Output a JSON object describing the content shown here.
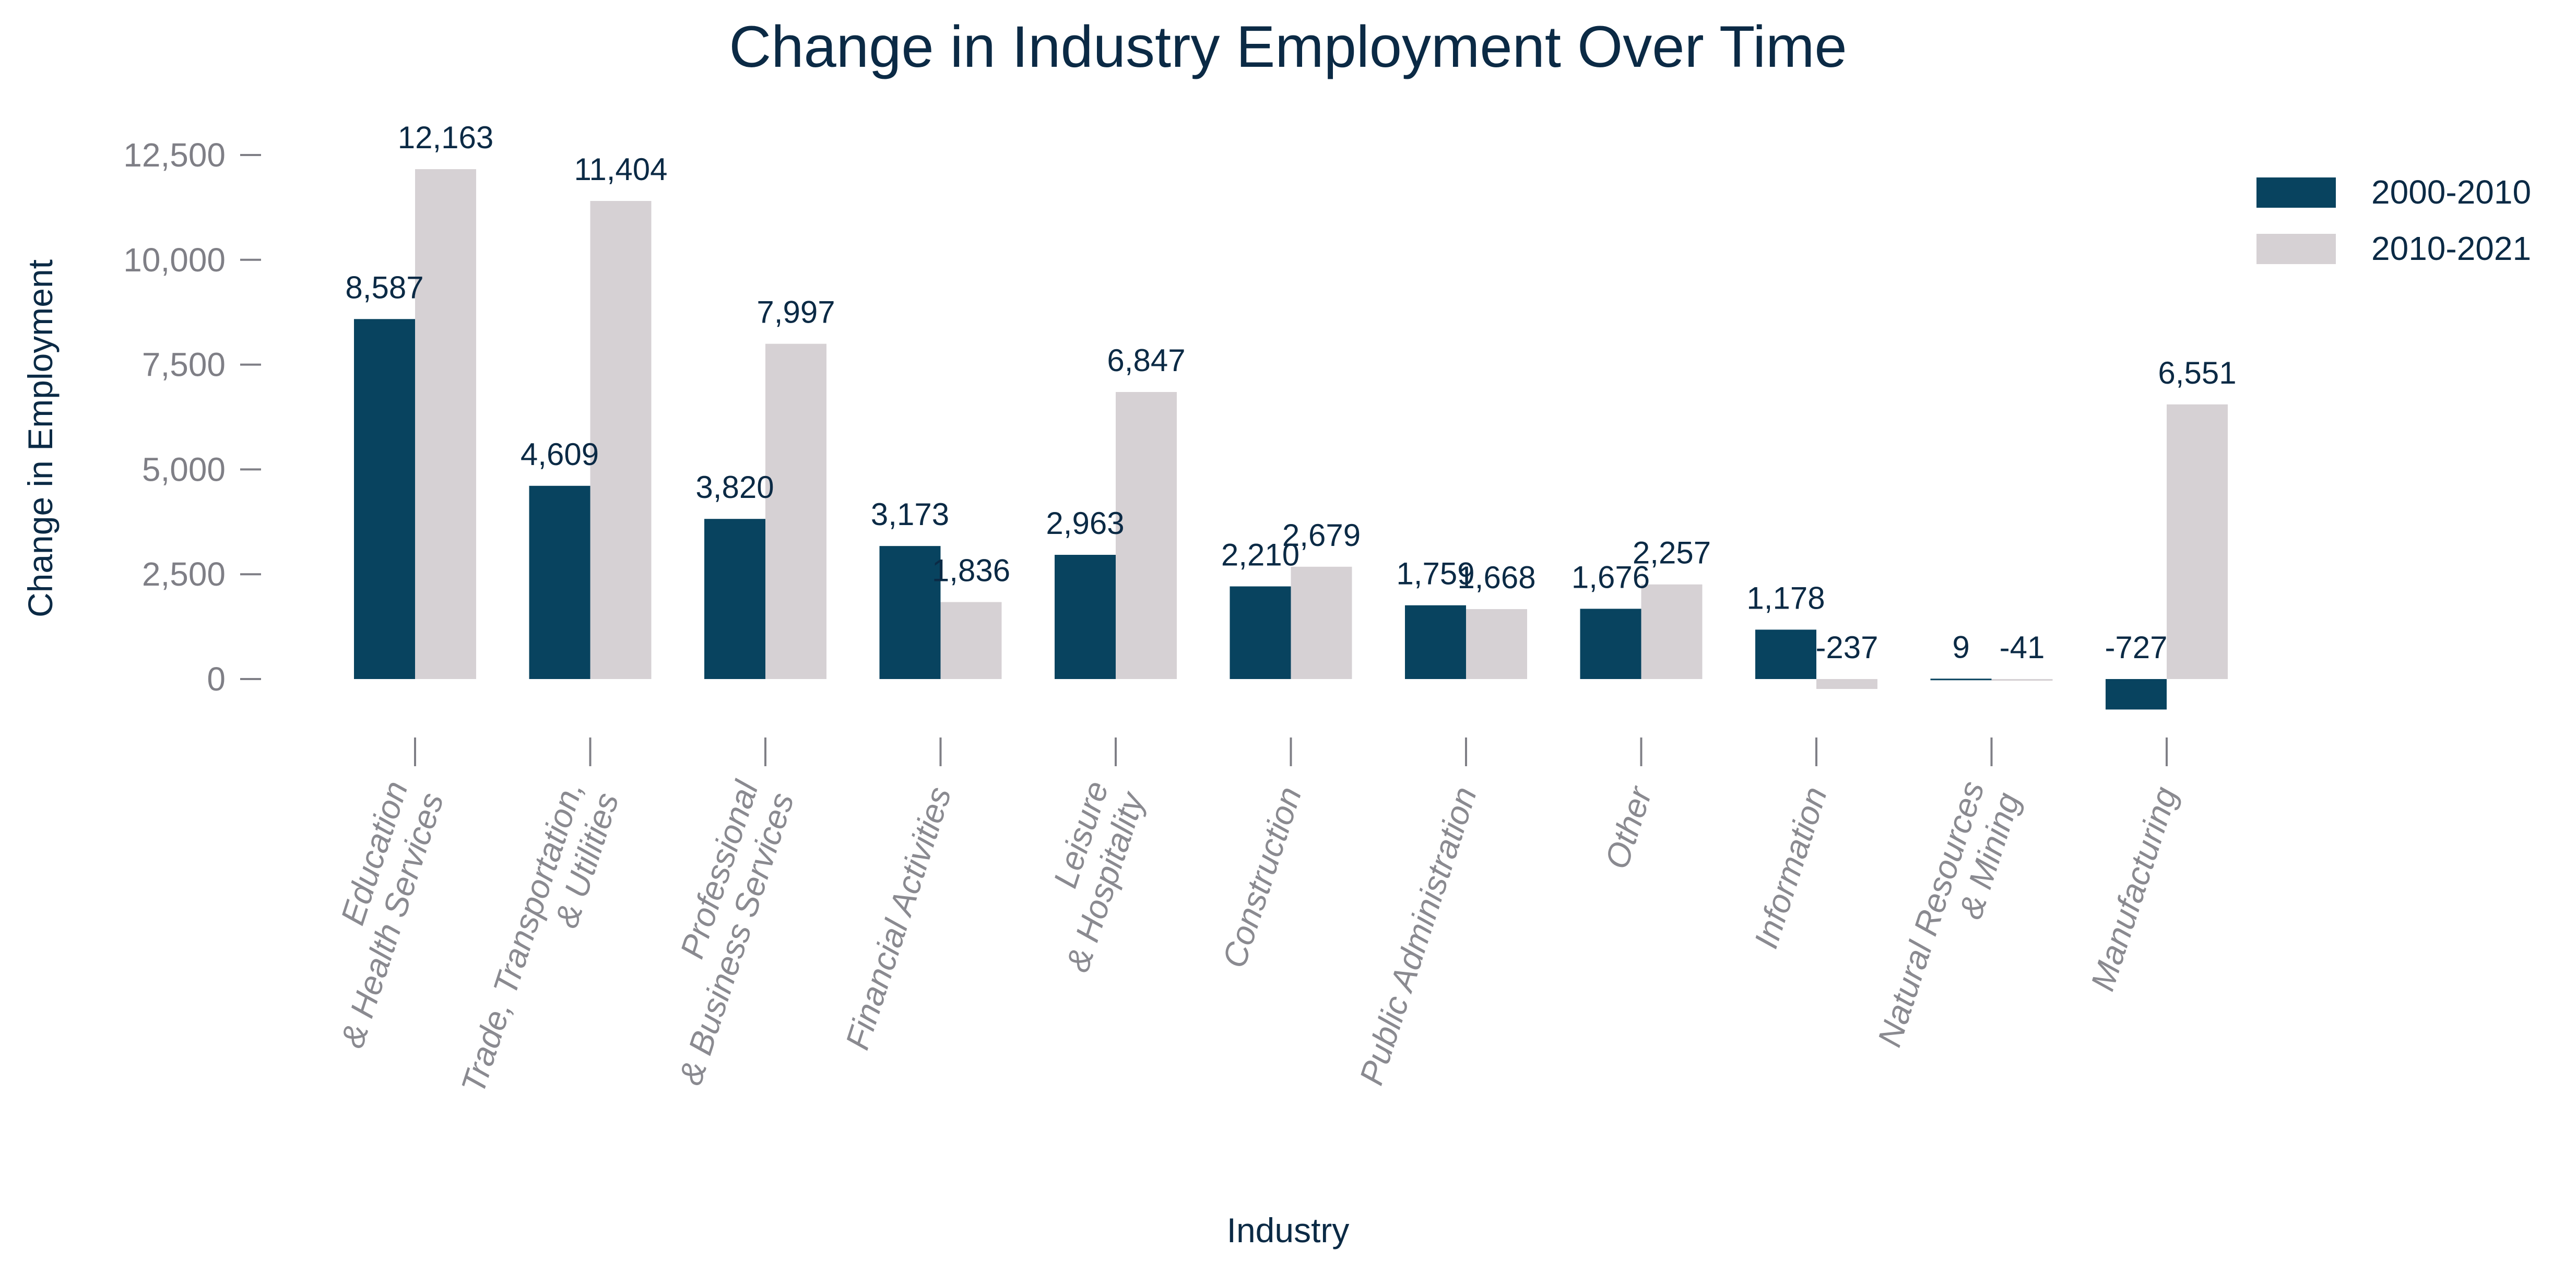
{
  "chart_data": {
    "type": "bar",
    "title": "Change in Industry Employment Over Time",
    "xlabel": "Industry",
    "ylabel": "Change in Employment",
    "categories": [
      [
        "Education",
        "& Health Services"
      ],
      [
        "Trade, Transportation,",
        "& Utilities"
      ],
      [
        "Professional",
        "& Business Services"
      ],
      [
        "Financial Activities"
      ],
      [
        "Leisure",
        "& Hospitality"
      ],
      [
        "Construction"
      ],
      [
        "Public Administration"
      ],
      [
        "Other"
      ],
      [
        "Information"
      ],
      [
        "Natural Resources",
        "& Mining"
      ],
      [
        "Manufacturing"
      ]
    ],
    "series": [
      {
        "name": "2000-2010",
        "color": "#08435f",
        "values": [
          8587,
          4609,
          3820,
          3173,
          2963,
          2210,
          1759,
          1676,
          1178,
          9,
          -727
        ],
        "labels": [
          "8,587",
          "4,609",
          "3,820",
          "3,173",
          "2,963",
          "2,210",
          "1,759",
          "1,676",
          "1,178",
          "9",
          "-727"
        ]
      },
      {
        "name": "2010-2021",
        "color": "#d6d1d4",
        "values": [
          12163,
          11404,
          7997,
          1836,
          6847,
          2679,
          1668,
          2257,
          -237,
          -41,
          6551
        ],
        "labels": [
          "12,163",
          "11,404",
          "7,997",
          "1,836",
          "6,847",
          "2,679",
          "1,668",
          "2,257",
          "-237",
          "-41",
          "6,551"
        ]
      }
    ],
    "yticks": [
      0,
      2500,
      5000,
      7500,
      10000,
      12500
    ],
    "ytick_labels": [
      "0",
      "2,500",
      "5,000",
      "7,500",
      "10,000",
      "12,500"
    ],
    "ylim": [
      -1400,
      13700
    ],
    "grid": false,
    "legend_position": "top-right"
  }
}
